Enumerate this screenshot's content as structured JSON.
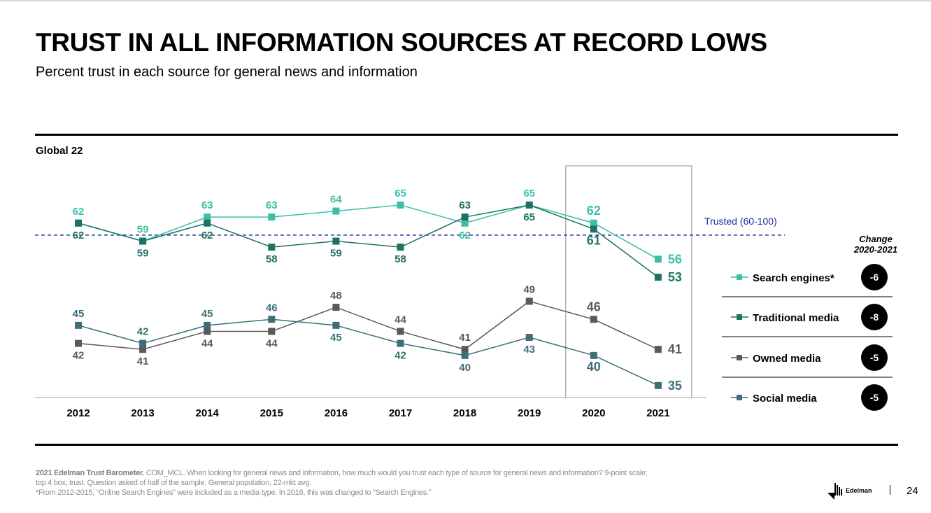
{
  "title": "TRUST IN ALL INFORMATION SOURCES AT RECORD LOWS",
  "subtitle": "Percent trust in each source for general news and information",
  "region_label": "Global 22",
  "threshold_label": "Trusted (60-100)",
  "change_header": [
    "Change",
    "2020-2021"
  ],
  "footnote": {
    "source_bold": "2021 Edelman Trust Barometer.",
    "line1": " COM_MCL.  When looking for general news and information, how much would you trust each type of source for general news and information? 9-point scale;",
    "line2": "top 4 box, trust. Question asked of half of the sample. General population, 22-mkt avg.",
    "line3": "*From 2012-2015, “Online Search Engines” were included as a media type. In 2016, this was changed to “Search Engines.”"
  },
  "logo_text": "Edelman",
  "page_number": "24",
  "colors": {
    "search": "#3dbfa5",
    "traditional": "#1e7264",
    "owned": "#595959",
    "social": "#3f6d79",
    "threshold": "#1f2d9e",
    "badge": "#000000"
  },
  "chart_data": {
    "type": "line",
    "x": [
      "2012",
      "2013",
      "2014",
      "2015",
      "2016",
      "2017",
      "2018",
      "2019",
      "2020",
      "2021"
    ],
    "ylim": [
      33,
      70
    ],
    "threshold": 60,
    "highlight_range": [
      "2020",
      "2021"
    ],
    "series": [
      {
        "key": "search",
        "name": "Search engines*",
        "values": [
          62,
          59,
          63,
          63,
          64,
          65,
          62,
          65,
          62,
          56
        ],
        "change": "-6"
      },
      {
        "key": "traditional",
        "name": "Traditional media",
        "values": [
          62,
          59,
          62,
          58,
          59,
          58,
          63,
          65,
          61,
          53
        ],
        "change": "-8"
      },
      {
        "key": "owned",
        "name": "Owned media",
        "values": [
          42,
          41,
          44,
          44,
          48,
          44,
          41,
          49,
          46,
          41
        ],
        "change": "-5"
      },
      {
        "key": "social",
        "name": "Social media",
        "values": [
          45,
          42,
          45,
          46,
          45,
          42,
          40,
          43,
          40,
          35
        ],
        "change": "-5"
      }
    ]
  }
}
